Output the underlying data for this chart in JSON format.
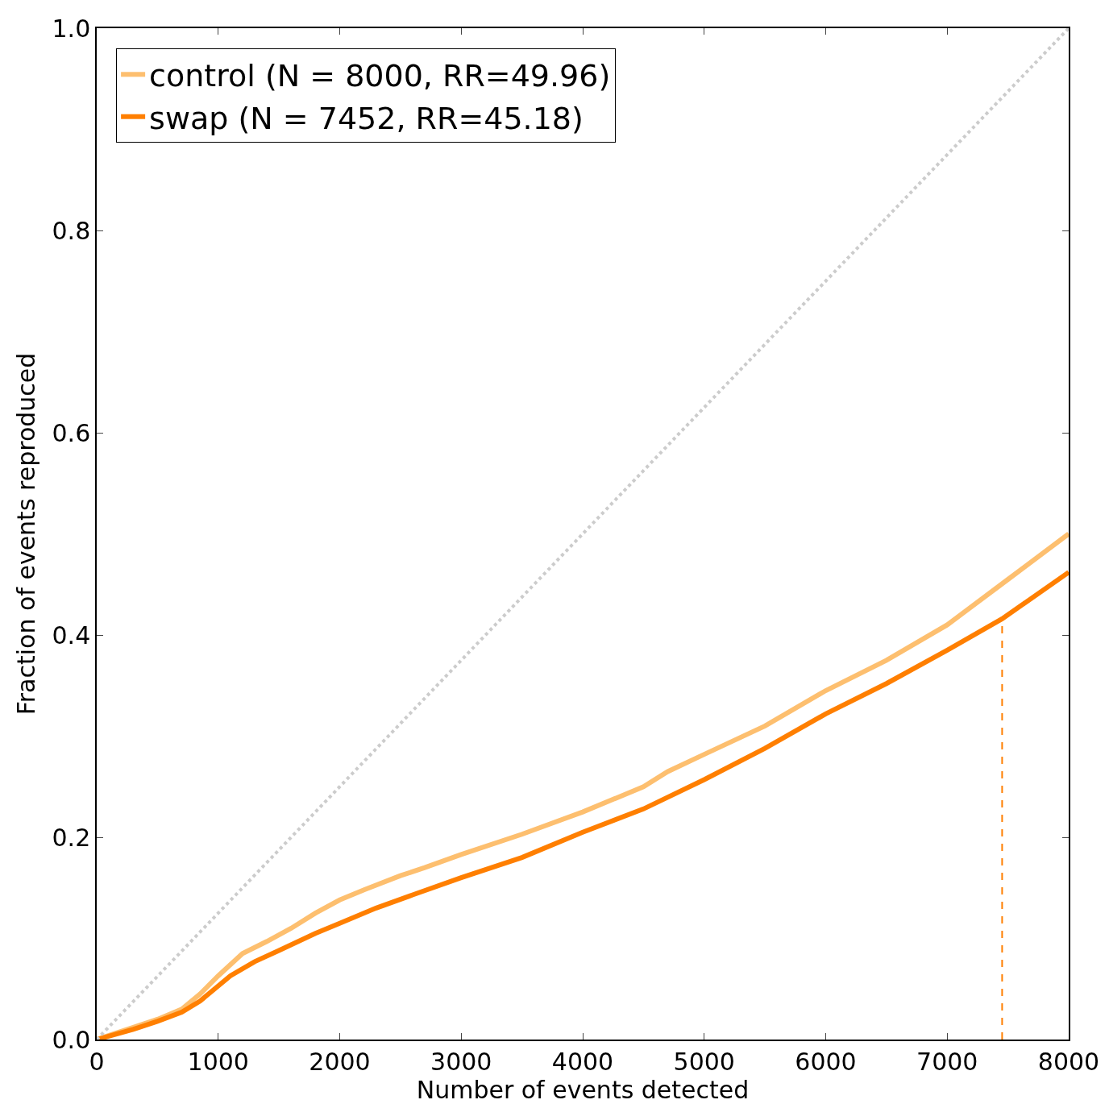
{
  "chart_data": {
    "type": "line",
    "xlabel": "Number of events detected",
    "ylabel": "Fraction of events reproduced",
    "xlim": [
      0,
      8000
    ],
    "ylim": [
      0,
      1
    ],
    "xticks": [
      0,
      1000,
      2000,
      3000,
      4000,
      5000,
      6000,
      7000,
      8000
    ],
    "yticks": [
      {
        "value": 0,
        "label": "0.0"
      },
      {
        "value": 0.2,
        "label": "0.2"
      },
      {
        "value": 0.4,
        "label": "0.4"
      },
      {
        "value": 0.6,
        "label": "0.6"
      },
      {
        "value": 0.8,
        "label": "0.8"
      },
      {
        "value": 1,
        "label": "1.0"
      }
    ],
    "legend": "top left",
    "marker": "none",
    "line_style": "solid",
    "series": [
      {
        "name": "control (N = 8000, RR=49.96)",
        "color": "#fdbf6f",
        "x": [
          0,
          500,
          700,
          850,
          1000,
          1200,
          1400,
          1600,
          1800,
          2000,
          2200,
          2500,
          2700,
          3000,
          3500,
          4000,
          4500,
          4700,
          5000,
          5500,
          6000,
          6500,
          7000,
          7500,
          8000
        ],
        "values": [
          0,
          0.02,
          0.03,
          0.045,
          0.063,
          0.085,
          0.097,
          0.11,
          0.125,
          0.138,
          0.148,
          0.162,
          0.17,
          0.183,
          0.203,
          0.225,
          0.25,
          0.265,
          0.282,
          0.31,
          0.345,
          0.375,
          0.41,
          0.455,
          0.5
        ]
      },
      {
        "name": "swap (N = 7452, RR=45.18)",
        "color": "#ff7f00",
        "x": [
          0,
          300,
          500,
          700,
          850,
          1000,
          1100,
          1300,
          1500,
          1800,
          2000,
          2300,
          2600,
          3000,
          3500,
          4000,
          4500,
          5000,
          5500,
          6000,
          6500,
          7000,
          7452,
          8000
        ],
        "values": [
          0,
          0.01,
          0.018,
          0.027,
          0.038,
          0.053,
          0.063,
          0.077,
          0.088,
          0.105,
          0.115,
          0.13,
          0.143,
          0.16,
          0.18,
          0.205,
          0.228,
          0.257,
          0.288,
          0.322,
          0.352,
          0.385,
          0.416,
          0.462
        ]
      },
      {
        "color": "#cccccc",
        "line_style": "dotted",
        "x": [
          0,
          8000
        ],
        "values": [
          0,
          1
        ]
      },
      {
        "color": "#ff7f00",
        "line_style": "dashed",
        "x": [
          7452,
          7452
        ],
        "values": [
          0,
          0.416
        ]
      }
    ]
  }
}
